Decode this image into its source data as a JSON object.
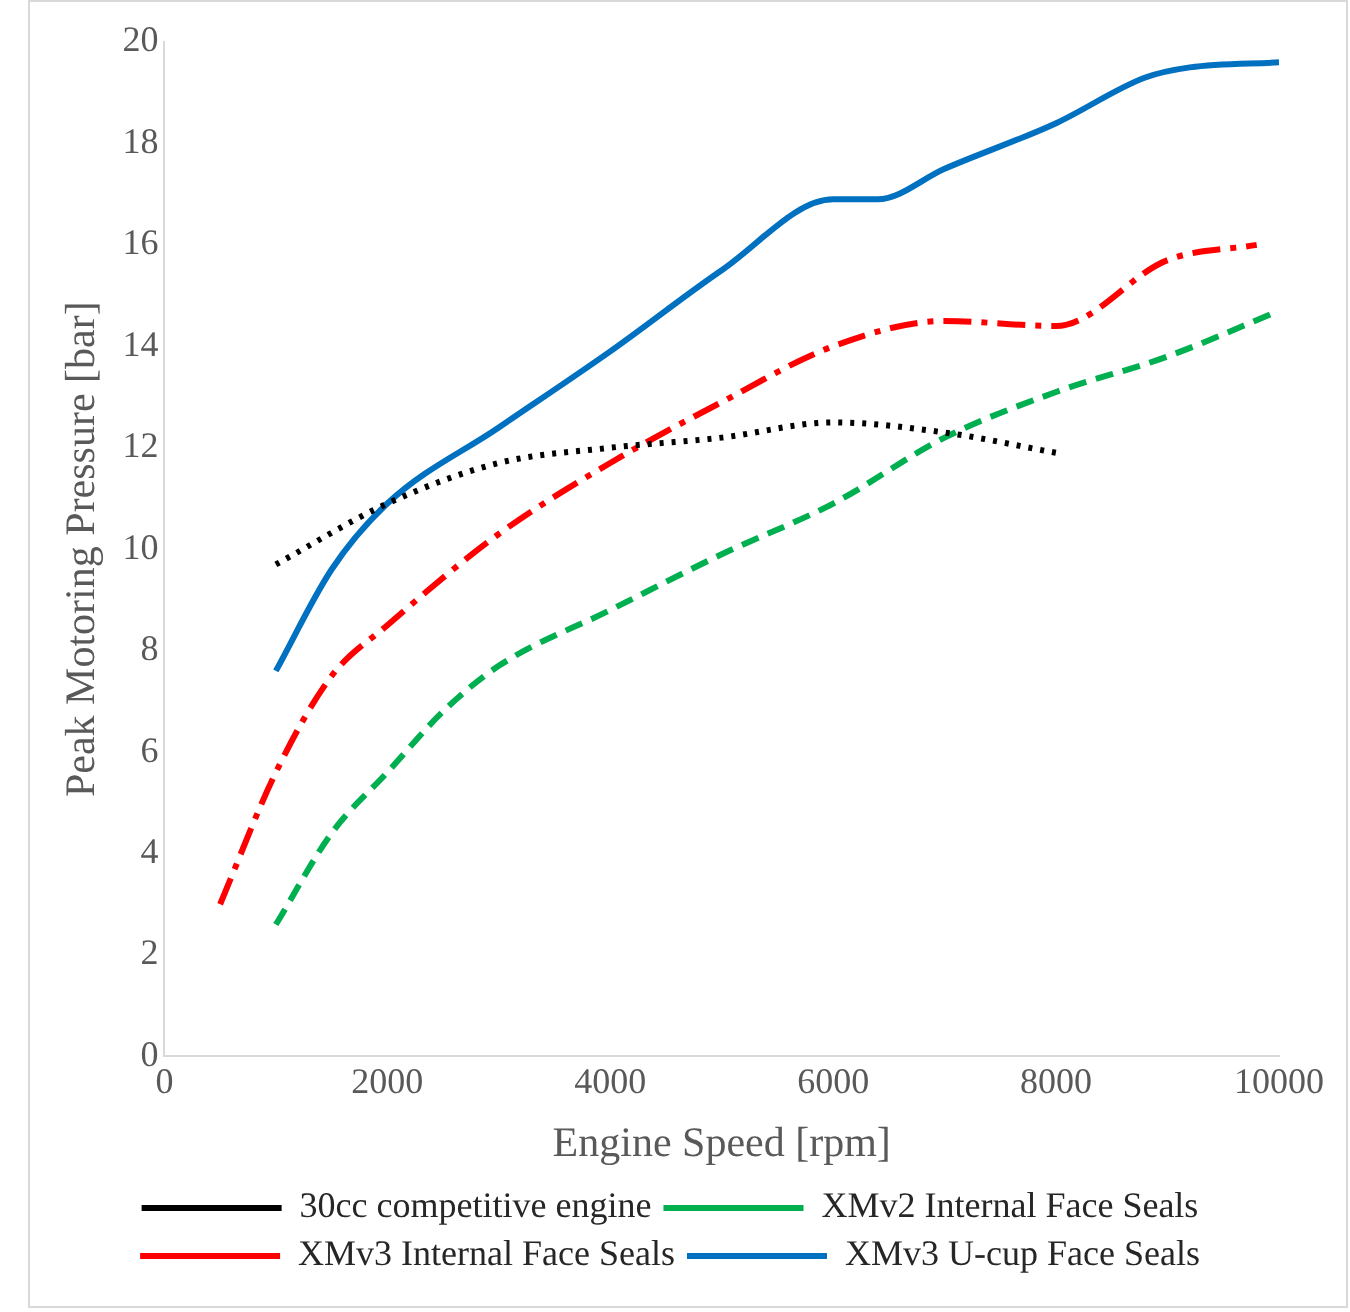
{
  "chart_data": {
    "type": "line",
    "xlabel": "Engine Speed [rpm]",
    "ylabel": "Peak Motoring Pressure [bar]",
    "xlim": [
      0,
      10000
    ],
    "xticks": [
      0,
      2000,
      4000,
      6000,
      8000,
      10000
    ],
    "ylim": [
      0,
      20
    ],
    "yticks": [
      0,
      2,
      4,
      6,
      8,
      10,
      12,
      14,
      16,
      18,
      20
    ],
    "grid": false,
    "legend": "bottom",
    "marker": "none",
    "series": [
      {
        "name": "30cc competitive engine",
        "color": "#000000",
        "line_style": "dotted",
        "x": [
          1000,
          2000,
          3000,
          4000,
          5000,
          6000,
          7000,
          8000
        ],
        "values": [
          9.7,
          10.9,
          11.7,
          12.0,
          12.2,
          12.5,
          12.3,
          11.9
        ]
      },
      {
        "name": "XMv2 Internal Face Seals",
        "color": "#00b050",
        "line_style": "dashed",
        "x": [
          1000,
          1500,
          2000,
          2500,
          3000,
          4000,
          5000,
          6000,
          7000,
          8000,
          9000,
          10000
        ],
        "values": [
          2.6,
          4.4,
          5.6,
          6.8,
          7.7,
          8.8,
          9.9,
          10.9,
          12.2,
          13.1,
          13.8,
          14.7
        ]
      },
      {
        "name": "XMv3 Internal Face Seals",
        "color": "#ff0000",
        "line_style": "dashdot",
        "x": [
          500,
          1000,
          1500,
          2000,
          3000,
          4000,
          5000,
          6000,
          7000,
          8000,
          9000,
          9800
        ],
        "values": [
          3.0,
          5.6,
          7.5,
          8.5,
          10.3,
          11.7,
          12.9,
          14.0,
          14.5,
          14.4,
          15.7,
          16.0
        ]
      },
      {
        "name": "XMv3 U-cup Face Seals",
        "color": "#0070c0",
        "line_style": "solid",
        "x": [
          1000,
          1500,
          2000,
          3000,
          4000,
          5000,
          6000,
          6400,
          7000,
          8000,
          8800,
          9200,
          10000
        ],
        "values": [
          7.6,
          9.6,
          10.9,
          12.4,
          13.9,
          15.5,
          16.9,
          16.9,
          17.5,
          18.4,
          19.3,
          19.5,
          19.6
        ]
      }
    ]
  }
}
